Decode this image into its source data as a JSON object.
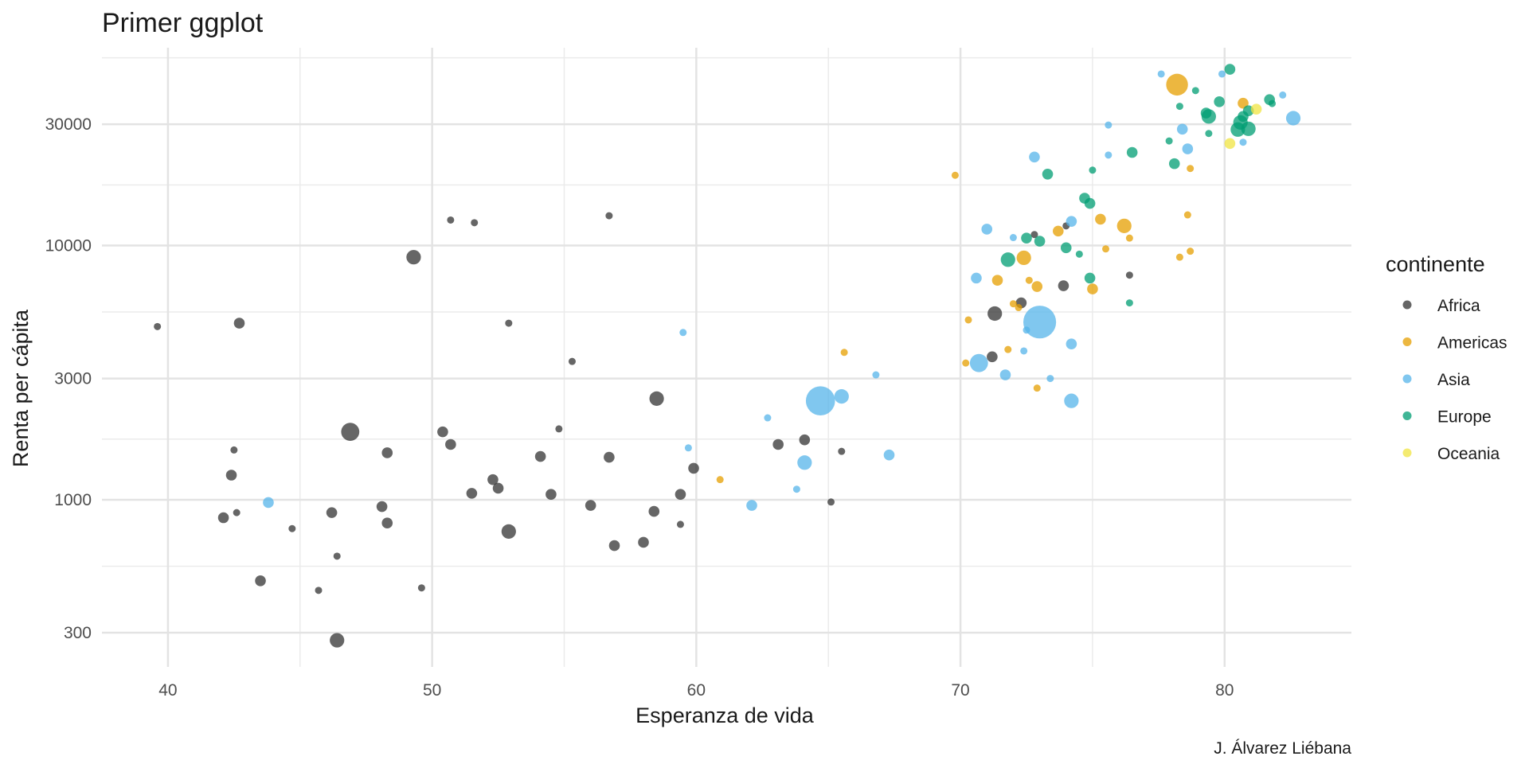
{
  "chart_data": {
    "type": "scatter",
    "title": "Primer ggplot",
    "xlabel": "Esperanza de vida",
    "ylabel": "Renta per cápita",
    "caption": "J. Álvarez Liébana",
    "x_scale": "linear",
    "y_scale": "log10",
    "xlim": [
      37.5,
      84.8
    ],
    "ylim": [
      220,
      60000
    ],
    "x_ticks": [
      40,
      50,
      60,
      70,
      80
    ],
    "y_ticks": [
      300,
      1000,
      3000,
      10000,
      30000
    ],
    "y_tick_labels": [
      "300",
      "1000",
      "3000",
      "10000",
      "30000"
    ],
    "grid": true,
    "legend_title": "continente",
    "legend_position": "right",
    "series": [
      {
        "name": "Africa",
        "color": "#333333",
        "points": [
          {
            "x": 39.6,
            "y": 4800,
            "size": 1
          },
          {
            "x": 42.7,
            "y": 4950,
            "size": 2
          },
          {
            "x": 46.9,
            "y": 1850,
            "size": 4
          },
          {
            "x": 49.3,
            "y": 9000,
            "size": 3
          },
          {
            "x": 50.7,
            "y": 12600,
            "size": 1
          },
          {
            "x": 51.6,
            "y": 12300,
            "size": 1
          },
          {
            "x": 56.7,
            "y": 13100,
            "size": 1
          },
          {
            "x": 52.9,
            "y": 4950,
            "size": 1
          },
          {
            "x": 55.3,
            "y": 3500,
            "size": 1
          },
          {
            "x": 58.5,
            "y": 2500,
            "size": 3
          },
          {
            "x": 42.5,
            "y": 1570,
            "size": 1
          },
          {
            "x": 42.4,
            "y": 1250,
            "size": 2
          },
          {
            "x": 42.1,
            "y": 850,
            "size": 2
          },
          {
            "x": 42.6,
            "y": 890,
            "size": 1
          },
          {
            "x": 44.7,
            "y": 770,
            "size": 1
          },
          {
            "x": 46.2,
            "y": 890,
            "size": 2
          },
          {
            "x": 46.4,
            "y": 600,
            "size": 1
          },
          {
            "x": 43.5,
            "y": 480,
            "size": 2
          },
          {
            "x": 45.7,
            "y": 440,
            "size": 1
          },
          {
            "x": 46.4,
            "y": 280,
            "size": 3
          },
          {
            "x": 49.6,
            "y": 450,
            "size": 1
          },
          {
            "x": 48.3,
            "y": 1530,
            "size": 2
          },
          {
            "x": 48.1,
            "y": 940,
            "size": 2
          },
          {
            "x": 48.3,
            "y": 810,
            "size": 2
          },
          {
            "x": 50.4,
            "y": 1850,
            "size": 2
          },
          {
            "x": 50.7,
            "y": 1650,
            "size": 2
          },
          {
            "x": 51.5,
            "y": 1060,
            "size": 2
          },
          {
            "x": 52.3,
            "y": 1200,
            "size": 2
          },
          {
            "x": 52.5,
            "y": 1110,
            "size": 2
          },
          {
            "x": 52.9,
            "y": 750,
            "size": 3
          },
          {
            "x": 54.1,
            "y": 1480,
            "size": 2
          },
          {
            "x": 54.5,
            "y": 1050,
            "size": 2
          },
          {
            "x": 54.8,
            "y": 1900,
            "size": 1
          },
          {
            "x": 56.0,
            "y": 950,
            "size": 2
          },
          {
            "x": 56.7,
            "y": 1470,
            "size": 2
          },
          {
            "x": 56.9,
            "y": 660,
            "size": 2
          },
          {
            "x": 58.0,
            "y": 680,
            "size": 2
          },
          {
            "x": 58.4,
            "y": 900,
            "size": 2
          },
          {
            "x": 59.4,
            "y": 1050,
            "size": 2
          },
          {
            "x": 59.4,
            "y": 800,
            "size": 1
          },
          {
            "x": 59.9,
            "y": 1330,
            "size": 2
          },
          {
            "x": 63.1,
            "y": 1650,
            "size": 2
          },
          {
            "x": 64.1,
            "y": 1720,
            "size": 2
          },
          {
            "x": 65.1,
            "y": 980,
            "size": 1
          },
          {
            "x": 65.5,
            "y": 1550,
            "size": 1
          },
          {
            "x": 71.3,
            "y": 5400,
            "size": 3
          },
          {
            "x": 72.3,
            "y": 5950,
            "size": 2
          },
          {
            "x": 72.8,
            "y": 11050,
            "size": 1
          },
          {
            "x": 74.0,
            "y": 11950,
            "size": 1
          },
          {
            "x": 73.9,
            "y": 6950,
            "size": 2
          },
          {
            "x": 76.4,
            "y": 7650,
            "size": 1
          },
          {
            "x": 71.2,
            "y": 3650,
            "size": 2
          }
        ]
      },
      {
        "name": "Americas",
        "color": "#E69F00",
        "points": [
          {
            "x": 60.9,
            "y": 1200,
            "size": 1
          },
          {
            "x": 65.6,
            "y": 3800,
            "size": 1
          },
          {
            "x": 69.8,
            "y": 18900,
            "size": 1
          },
          {
            "x": 70.3,
            "y": 5100,
            "size": 1
          },
          {
            "x": 70.2,
            "y": 3450,
            "size": 1
          },
          {
            "x": 71.4,
            "y": 7300,
            "size": 2
          },
          {
            "x": 71.8,
            "y": 3900,
            "size": 1
          },
          {
            "x": 72.2,
            "y": 5700,
            "size": 1
          },
          {
            "x": 72.4,
            "y": 8950,
            "size": 3
          },
          {
            "x": 72.6,
            "y": 7300,
            "size": 1
          },
          {
            "x": 72.9,
            "y": 6900,
            "size": 2
          },
          {
            "x": 72.9,
            "y": 2750,
            "size": 1
          },
          {
            "x": 73.7,
            "y": 11400,
            "size": 2
          },
          {
            "x": 75.0,
            "y": 6750,
            "size": 2
          },
          {
            "x": 75.3,
            "y": 12700,
            "size": 2
          },
          {
            "x": 75.5,
            "y": 9700,
            "size": 1
          },
          {
            "x": 76.2,
            "y": 11950,
            "size": 3
          },
          {
            "x": 76.4,
            "y": 10700,
            "size": 1
          },
          {
            "x": 78.3,
            "y": 9000,
            "size": 1
          },
          {
            "x": 78.6,
            "y": 13200,
            "size": 1
          },
          {
            "x": 78.7,
            "y": 9500,
            "size": 1
          },
          {
            "x": 78.7,
            "y": 20100,
            "size": 1
          },
          {
            "x": 78.2,
            "y": 42950,
            "size": 5
          },
          {
            "x": 80.7,
            "y": 36300,
            "size": 2
          },
          {
            "x": 72.0,
            "y": 5900,
            "size": 1
          }
        ]
      },
      {
        "name": "Asia",
        "color": "#56B4E9",
        "points": [
          {
            "x": 43.8,
            "y": 975,
            "size": 2
          },
          {
            "x": 59.5,
            "y": 4550,
            "size": 1
          },
          {
            "x": 59.7,
            "y": 1600,
            "size": 1
          },
          {
            "x": 62.1,
            "y": 950,
            "size": 2
          },
          {
            "x": 62.7,
            "y": 2100,
            "size": 1
          },
          {
            "x": 63.8,
            "y": 1100,
            "size": 1
          },
          {
            "x": 64.1,
            "y": 1400,
            "size": 3
          },
          {
            "x": 64.7,
            "y": 2450,
            "size": 7
          },
          {
            "x": 65.5,
            "y": 2550,
            "size": 3
          },
          {
            "x": 66.8,
            "y": 3100,
            "size": 1
          },
          {
            "x": 67.3,
            "y": 1500,
            "size": 2
          },
          {
            "x": 70.6,
            "y": 7450,
            "size": 2
          },
          {
            "x": 70.7,
            "y": 3450,
            "size": 4
          },
          {
            "x": 71.0,
            "y": 11600,
            "size": 2
          },
          {
            "x": 71.7,
            "y": 3100,
            "size": 2
          },
          {
            "x": 72.0,
            "y": 10750,
            "size": 1
          },
          {
            "x": 72.4,
            "y": 3850,
            "size": 1
          },
          {
            "x": 72.5,
            "y": 4650,
            "size": 1
          },
          {
            "x": 73.0,
            "y": 5000,
            "size": 8
          },
          {
            "x": 72.8,
            "y": 22300,
            "size": 2
          },
          {
            "x": 73.4,
            "y": 3000,
            "size": 1
          },
          {
            "x": 74.2,
            "y": 12450,
            "size": 2
          },
          {
            "x": 74.2,
            "y": 4100,
            "size": 2
          },
          {
            "x": 74.2,
            "y": 2450,
            "size": 3
          },
          {
            "x": 75.6,
            "y": 29800,
            "size": 1
          },
          {
            "x": 75.6,
            "y": 22700,
            "size": 1
          },
          {
            "x": 77.6,
            "y": 47300,
            "size": 1
          },
          {
            "x": 78.4,
            "y": 28700,
            "size": 2
          },
          {
            "x": 78.6,
            "y": 24000,
            "size": 2
          },
          {
            "x": 79.9,
            "y": 47300,
            "size": 1
          },
          {
            "x": 80.7,
            "y": 25500,
            "size": 1
          },
          {
            "x": 82.2,
            "y": 39100,
            "size": 1
          },
          {
            "x": 82.6,
            "y": 31700,
            "size": 3
          }
        ]
      },
      {
        "name": "Europe",
        "color": "#009E73",
        "points": [
          {
            "x": 71.8,
            "y": 8800,
            "size": 3
          },
          {
            "x": 72.5,
            "y": 10700,
            "size": 2
          },
          {
            "x": 73.0,
            "y": 10400,
            "size": 2
          },
          {
            "x": 73.3,
            "y": 19100,
            "size": 2
          },
          {
            "x": 74.0,
            "y": 9800,
            "size": 2
          },
          {
            "x": 74.5,
            "y": 9250,
            "size": 1
          },
          {
            "x": 74.7,
            "y": 15350,
            "size": 2
          },
          {
            "x": 74.9,
            "y": 7450,
            "size": 2
          },
          {
            "x": 74.9,
            "y": 14650,
            "size": 2
          },
          {
            "x": 75.0,
            "y": 19800,
            "size": 1
          },
          {
            "x": 76.4,
            "y": 5950,
            "size": 1
          },
          {
            "x": 76.5,
            "y": 23250,
            "size": 2
          },
          {
            "x": 77.9,
            "y": 25800,
            "size": 1
          },
          {
            "x": 78.1,
            "y": 21000,
            "size": 2
          },
          {
            "x": 78.3,
            "y": 35300,
            "size": 1
          },
          {
            "x": 78.9,
            "y": 40700,
            "size": 1
          },
          {
            "x": 79.3,
            "y": 33200,
            "size": 2
          },
          {
            "x": 79.4,
            "y": 32200,
            "size": 3
          },
          {
            "x": 79.4,
            "y": 27600,
            "size": 1
          },
          {
            "x": 79.8,
            "y": 36800,
            "size": 2
          },
          {
            "x": 80.2,
            "y": 49350,
            "size": 2
          },
          {
            "x": 80.5,
            "y": 28600,
            "size": 3
          },
          {
            "x": 80.6,
            "y": 30500,
            "size": 3
          },
          {
            "x": 80.9,
            "y": 33900,
            "size": 2
          },
          {
            "x": 80.9,
            "y": 28800,
            "size": 3
          },
          {
            "x": 81.7,
            "y": 37500,
            "size": 2
          },
          {
            "x": 81.8,
            "y": 36200,
            "size": 1
          },
          {
            "x": 80.7,
            "y": 32200,
            "size": 2
          }
        ]
      },
      {
        "name": "Oceania",
        "color": "#F0E442",
        "points": [
          {
            "x": 80.2,
            "y": 25200,
            "size": 2
          },
          {
            "x": 81.2,
            "y": 34400,
            "size": 2
          }
        ]
      }
    ]
  }
}
